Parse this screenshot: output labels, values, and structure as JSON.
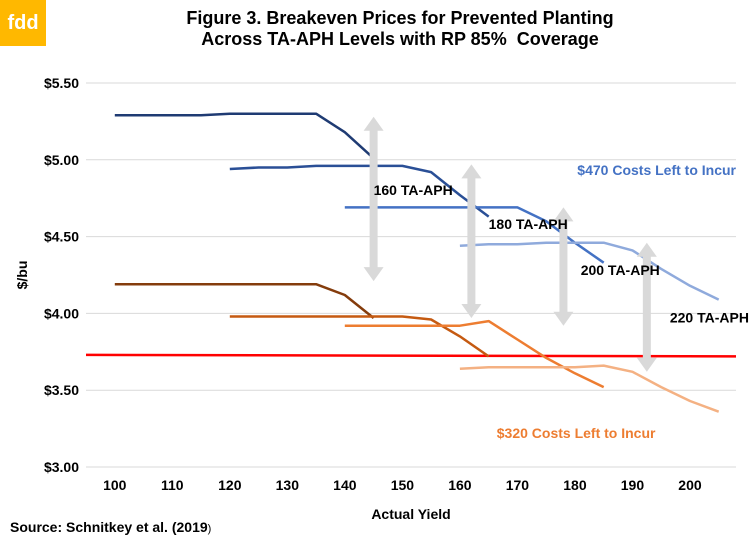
{
  "brand": {
    "logo_text": "fdd"
  },
  "chart_data": {
    "type": "line",
    "title_lines": [
      "Figure 3. Breakeven Prices for Prevented Planting",
      "Across TA-APH Levels with RP 85%  Coverage"
    ],
    "xlabel": "Actual Yield",
    "ylabel": "$/bu",
    "xlim": [
      95,
      208
    ],
    "ylim": [
      3.0,
      5.5
    ],
    "x_ticks": [
      100,
      110,
      120,
      130,
      140,
      150,
      160,
      170,
      180,
      190,
      200
    ],
    "y_ticks": [
      3.0,
      3.5,
      4.0,
      4.5,
      5.0,
      5.5
    ],
    "y_tick_labels": [
      "$3.00",
      "$3.50",
      "$4.00",
      "$4.50",
      "$5.00",
      "$5.50"
    ],
    "grid": "horizontal",
    "legend": "none",
    "series": [
      {
        "group": "470",
        "tapah": 160,
        "color": "#1f3b73",
        "x": [
          100,
          110,
          115,
          120,
          125,
          130,
          135,
          140,
          145
        ],
        "y": [
          5.29,
          5.29,
          5.29,
          5.3,
          5.3,
          5.3,
          5.3,
          5.18,
          5.01
        ]
      },
      {
        "group": "470",
        "tapah": 180,
        "color": "#2a4f96",
        "x": [
          120,
          125,
          130,
          135,
          140,
          145,
          150,
          155,
          160,
          165
        ],
        "y": [
          4.94,
          4.95,
          4.95,
          4.96,
          4.96,
          4.96,
          4.96,
          4.92,
          4.77,
          4.63
        ]
      },
      {
        "group": "470",
        "tapah": 200,
        "color": "#4472c4",
        "x": [
          140,
          145,
          150,
          155,
          160,
          165,
          170,
          175,
          180,
          185
        ],
        "y": [
          4.69,
          4.69,
          4.69,
          4.69,
          4.69,
          4.69,
          4.69,
          4.6,
          4.46,
          4.33
        ]
      },
      {
        "group": "470",
        "tapah": 220,
        "color": "#8faadc",
        "x": [
          160,
          165,
          170,
          175,
          180,
          185,
          190,
          195,
          200,
          205
        ],
        "y": [
          4.44,
          4.45,
          4.45,
          4.46,
          4.46,
          4.46,
          4.41,
          4.29,
          4.18,
          4.09
        ]
      },
      {
        "group": "320",
        "tapah": 160,
        "color": "#843c0c",
        "x": [
          100,
          110,
          120,
          130,
          135,
          140,
          145
        ],
        "y": [
          4.19,
          4.19,
          4.19,
          4.19,
          4.19,
          4.12,
          3.97
        ]
      },
      {
        "group": "320",
        "tapah": 180,
        "color": "#c55a11",
        "x": [
          120,
          125,
          130,
          135,
          140,
          145,
          150,
          155,
          160,
          165
        ],
        "y": [
          3.98,
          3.98,
          3.98,
          3.98,
          3.98,
          3.98,
          3.98,
          3.96,
          3.85,
          3.72
        ]
      },
      {
        "group": "320",
        "tapah": 200,
        "color": "#ed7d31",
        "x": [
          140,
          145,
          150,
          155,
          160,
          165,
          170,
          175,
          180,
          185
        ],
        "y": [
          3.92,
          3.92,
          3.92,
          3.92,
          3.92,
          3.95,
          3.83,
          3.71,
          3.61,
          3.52
        ]
      },
      {
        "group": "320",
        "tapah": 220,
        "color": "#f4b183",
        "x": [
          160,
          165,
          170,
          175,
          180,
          185,
          190,
          195,
          200,
          205
        ],
        "y": [
          3.64,
          3.65,
          3.65,
          3.65,
          3.65,
          3.66,
          3.62,
          3.52,
          3.43,
          3.36
        ]
      }
    ],
    "reference_line": {
      "color": "#ff0000",
      "x": [
        95,
        208
      ],
      "y": [
        3.73,
        3.72
      ]
    },
    "arrows": [
      {
        "x": 145,
        "y": [
          5.28,
          4.21
        ]
      },
      {
        "x": 162,
        "y": [
          4.97,
          3.97
        ]
      },
      {
        "x": 178,
        "y": [
          4.69,
          3.92
        ]
      },
      {
        "x": 192.5,
        "y": [
          4.46,
          3.62
        ]
      }
    ],
    "annotations": [
      {
        "text": "160 TA-APH",
        "x": 145,
        "y": 4.77,
        "color": "#000000",
        "anchor": "start"
      },
      {
        "text": "180 TA-APH",
        "x": 165,
        "y": 4.55,
        "color": "#000000",
        "anchor": "start"
      },
      {
        "text": "200 TA-APH",
        "x": 181,
        "y": 4.25,
        "color": "#000000",
        "anchor": "start"
      },
      {
        "text": "220 TA-APH",
        "x": 196.5,
        "y": 3.94,
        "color": "#000000",
        "anchor": "start"
      },
      {
        "text": "$470 Costs Left to Incur",
        "x": 208,
        "y": 4.9,
        "color": "#4472c4",
        "anchor": "end"
      },
      {
        "text": "$320 Costs Left to Incur",
        "x": 194,
        "y": 3.19,
        "color": "#ed7d31",
        "anchor": "end"
      }
    ]
  },
  "source": {
    "text": "Source: Schnitkey et al. (2019",
    "paren": ")"
  }
}
